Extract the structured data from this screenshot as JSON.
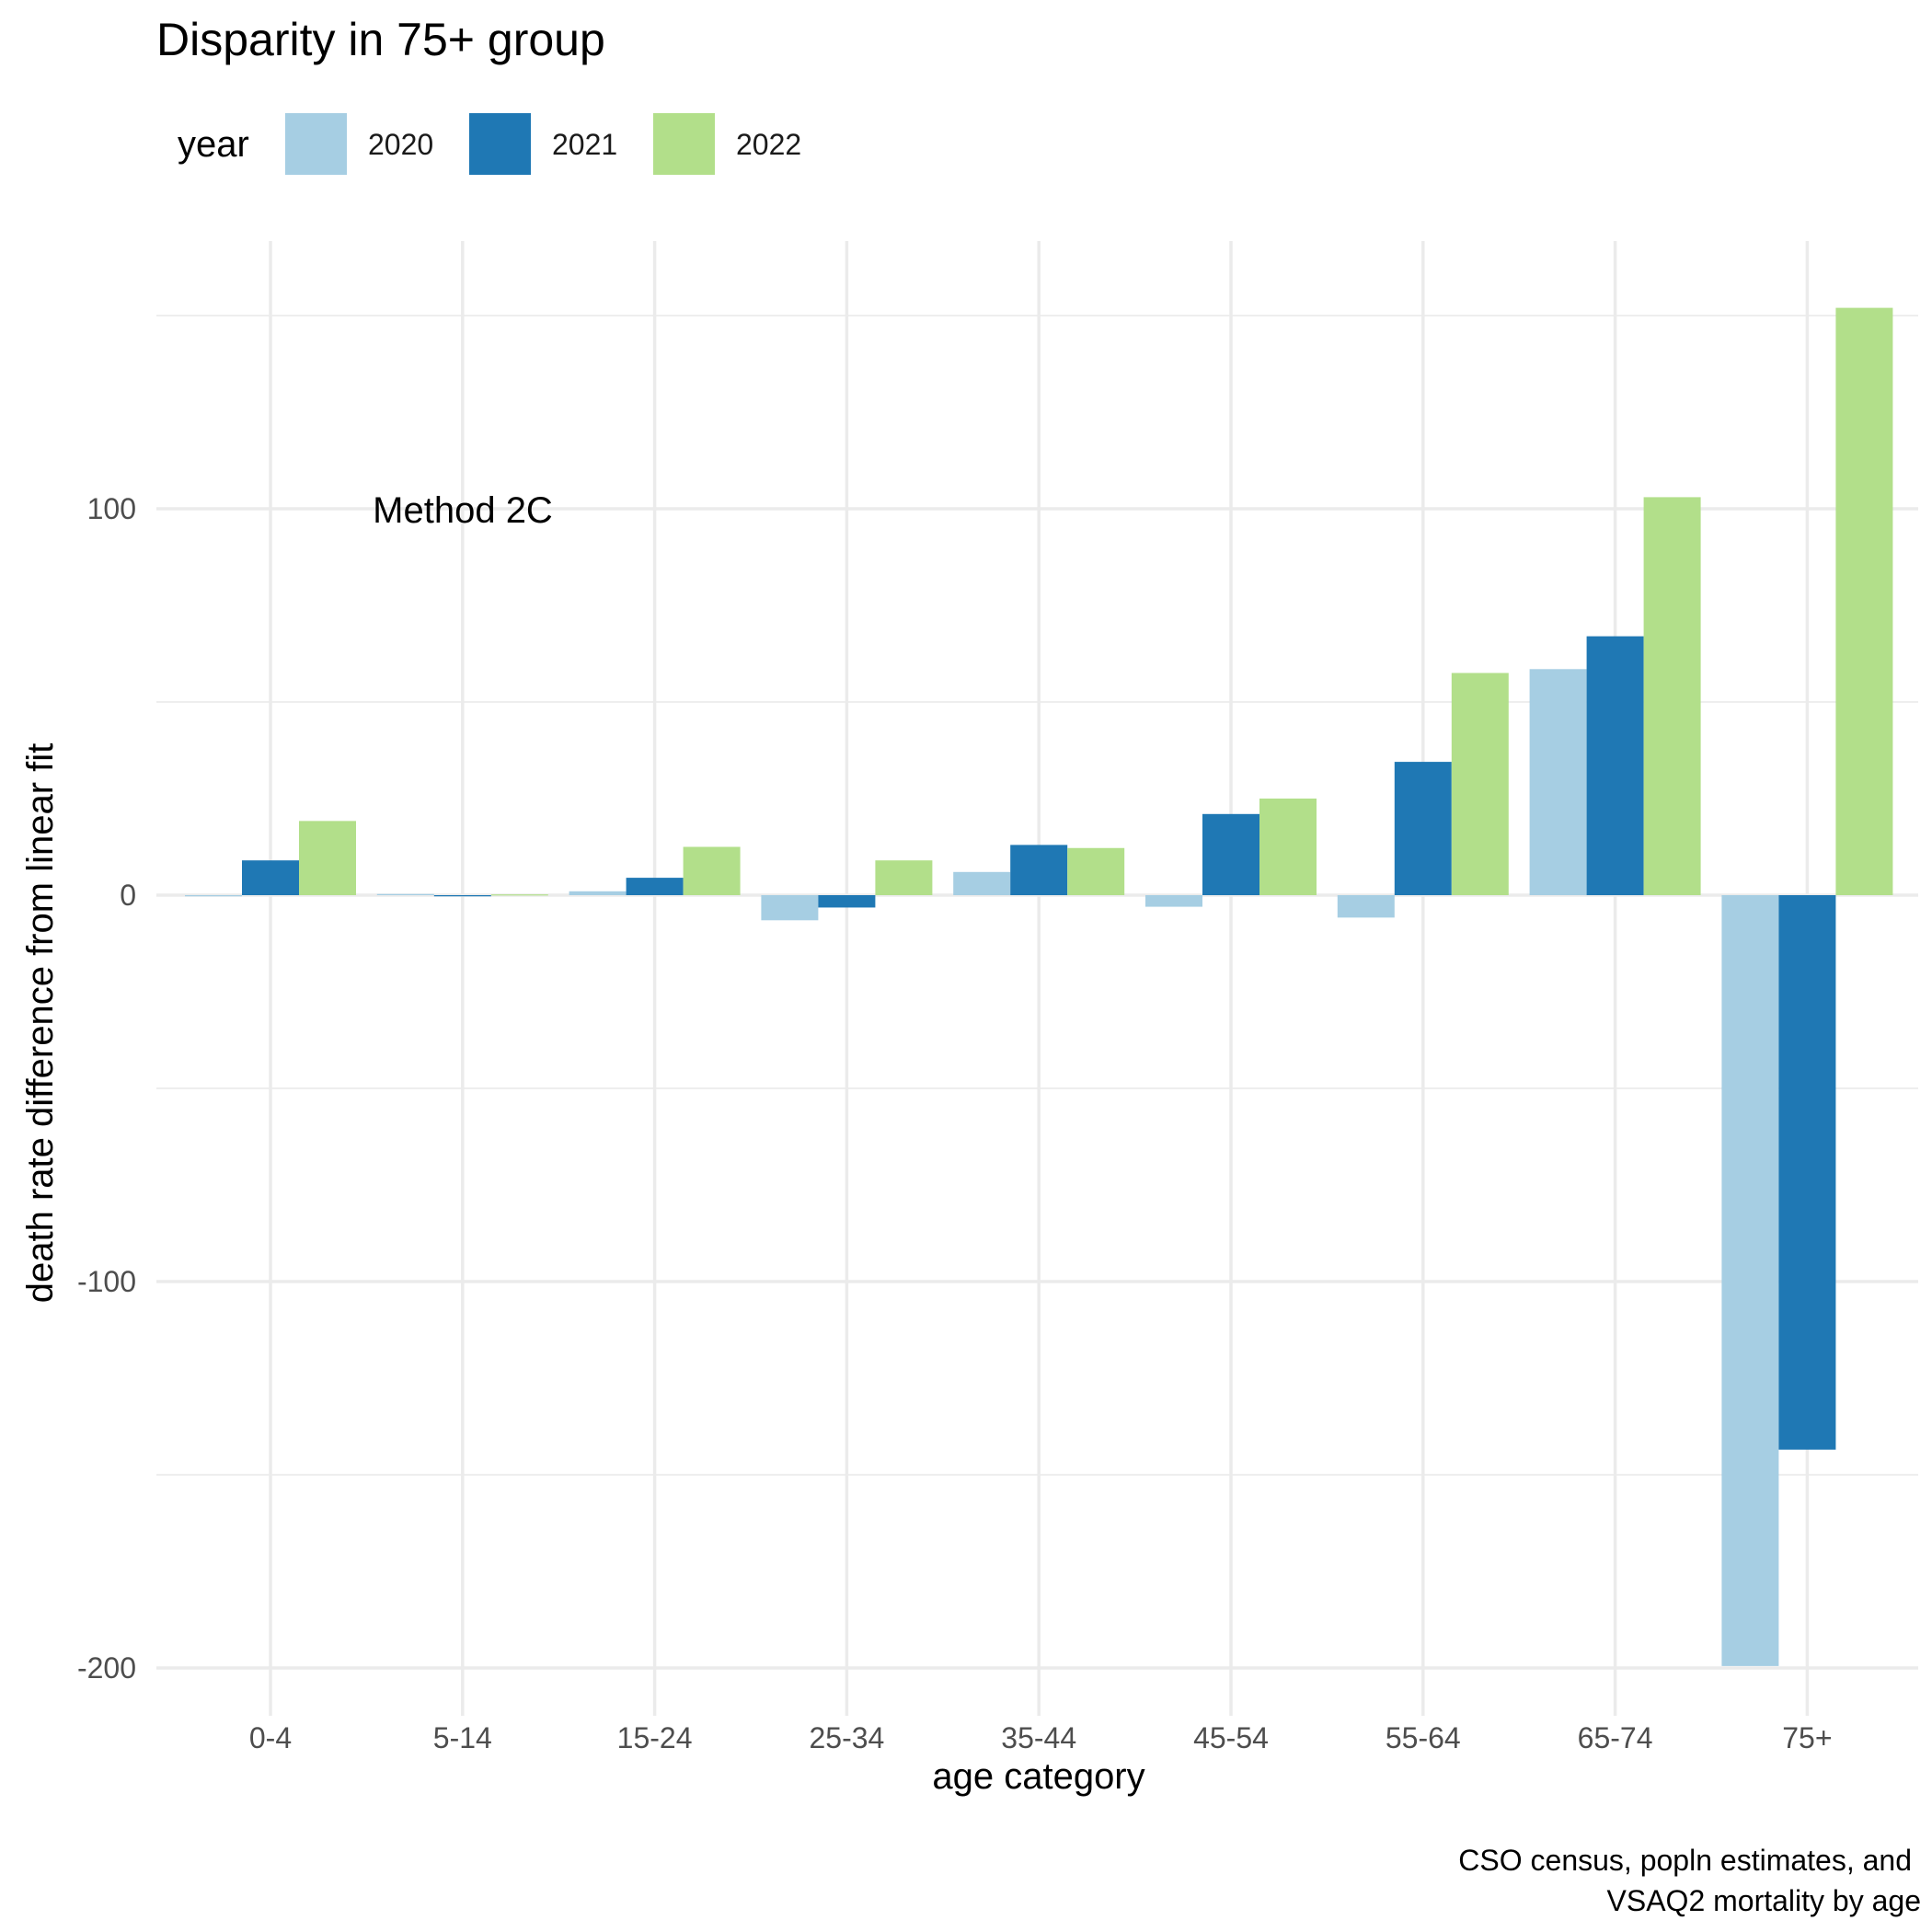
{
  "chart_data": {
    "type": "bar",
    "title": "Disparity in 75+ group",
    "xlabel": "age category",
    "ylabel": "death rate difference from linear fit",
    "caption": [
      "CSO census, popln estimates, and",
      "VSAQ2 mortality by age"
    ],
    "annotation": "Method 2C",
    "legend": {
      "title": "year",
      "position": "top-left"
    },
    "categories": [
      "0-4",
      "5-14",
      "15-24",
      "25-34",
      "35-44",
      "45-54",
      "55-64",
      "65-74",
      "75+"
    ],
    "series": [
      {
        "name": "2020",
        "color": "#a6cee3",
        "values": [
          -0.3,
          0.3,
          1.0,
          -6.5,
          6.0,
          -3.0,
          -5.8,
          58.5,
          -199.5
        ]
      },
      {
        "name": "2021",
        "color": "#1f78b4",
        "values": [
          9.0,
          -0.3,
          4.5,
          -3.2,
          13.0,
          21.0,
          34.5,
          67.0,
          -143.5
        ]
      },
      {
        "name": "2022",
        "color": "#b2df8a",
        "values": [
          19.2,
          0.2,
          12.5,
          9.0,
          12.2,
          25.0,
          57.5,
          103.0,
          152.0
        ]
      }
    ],
    "yticks": [
      -200,
      -100,
      0,
      100
    ],
    "ylim": [
      -209,
      170
    ],
    "grid": true
  }
}
